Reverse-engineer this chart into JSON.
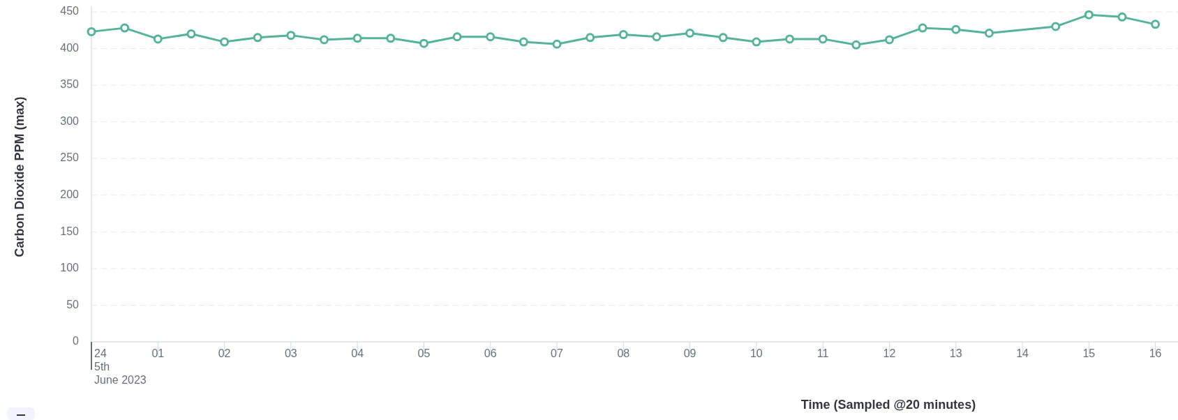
{
  "chart_data": {
    "type": "line",
    "xlabel": "Time (Sampled @20 minutes)",
    "ylabel": "Carbon Dioxide PPM (max)",
    "x": [
      0,
      0.5,
      1,
      1.5,
      2,
      2.5,
      3,
      3.5,
      4,
      4.5,
      5,
      5.5,
      6,
      6.5,
      7,
      7.5,
      8,
      8.5,
      9,
      9.5,
      10,
      10.5,
      11,
      11.5,
      12,
      12.5,
      13,
      13.5,
      14.5,
      15,
      15.5,
      16
    ],
    "series": [
      {
        "color": "#54b399",
        "values": [
          423,
          428,
          413,
          420,
          409,
          415,
          418,
          412,
          414,
          414,
          407,
          416,
          416,
          409,
          406,
          415,
          419,
          416,
          421,
          415,
          409,
          413,
          413,
          405,
          412,
          428,
          426,
          421,
          430,
          446,
          443,
          433
        ]
      }
    ],
    "xlim": [
      0,
      16.34
    ],
    "xticks": [
      {
        "value": 0,
        "label": "24\n5th\nJune 2023"
      },
      {
        "value": 1,
        "label": "01"
      },
      {
        "value": 2,
        "label": "02"
      },
      {
        "value": 3,
        "label": "03"
      },
      {
        "value": 4,
        "label": "04"
      },
      {
        "value": 5,
        "label": "05"
      },
      {
        "value": 6,
        "label": "06"
      },
      {
        "value": 7,
        "label": "07"
      },
      {
        "value": 8,
        "label": "08"
      },
      {
        "value": 9,
        "label": "09"
      },
      {
        "value": 10,
        "label": "10"
      },
      {
        "value": 11,
        "label": "11"
      },
      {
        "value": 12,
        "label": "12"
      },
      {
        "value": 13,
        "label": "13"
      },
      {
        "value": 14,
        "label": "14"
      },
      {
        "value": 15,
        "label": "15"
      },
      {
        "value": 16,
        "label": "16"
      }
    ],
    "ylim": [
      0,
      450
    ],
    "yticks": [
      0,
      50,
      100,
      150,
      200,
      250,
      300,
      350,
      400,
      450
    ],
    "grid": "y",
    "marker": "circle",
    "line_style": "solid"
  }
}
